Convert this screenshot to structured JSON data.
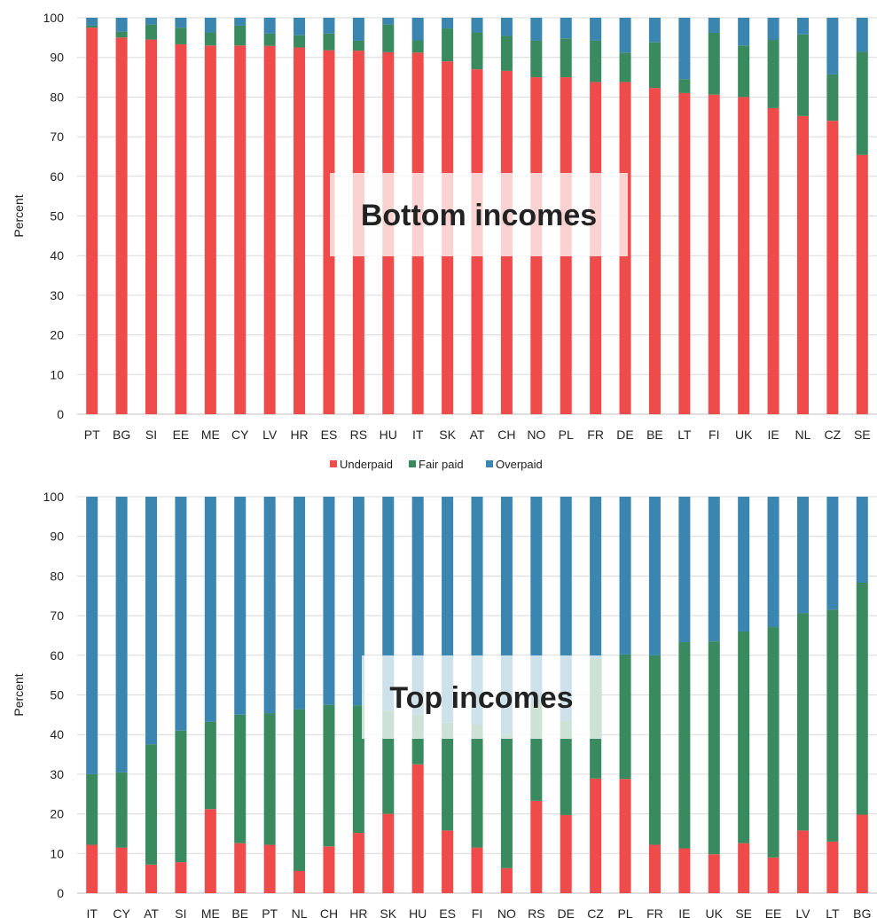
{
  "legend": [
    {
      "name": "Underpaid",
      "color": "#ef4b4b"
    },
    {
      "name": "Fair paid",
      "color": "#3a8a60"
    },
    {
      "name": "Overpaid",
      "color": "#3a86b0"
    }
  ],
  "chart_data": [
    {
      "type": "bar",
      "stacked": true,
      "overlay_label": "Bottom incomes",
      "ylabel": "Percent",
      "ylim": [
        0,
        100
      ],
      "yticks": [
        0,
        10,
        20,
        30,
        40,
        50,
        60,
        70,
        80,
        90,
        100
      ],
      "grid": true,
      "categories": [
        "PT",
        "BG",
        "SI",
        "EE",
        "ME",
        "CY",
        "LV",
        "HR",
        "ES",
        "RS",
        "HU",
        "IT",
        "SK",
        "AT",
        "CH",
        "NO",
        "PL",
        "FR",
        "DE",
        "BE",
        "LT",
        "FI",
        "UK",
        "IE",
        "NL",
        "CZ",
        "SE"
      ],
      "series": [
        {
          "name": "Underpaid",
          "values": [
            97.5,
            95,
            94.5,
            93.3,
            93,
            93,
            92.9,
            92.5,
            91.8,
            91.7,
            91.3,
            91.2,
            89,
            87,
            86.6,
            85,
            85,
            83.8,
            83.8,
            82.3,
            81,
            80.6,
            80,
            77.2,
            75.2,
            74,
            65.4
          ]
        },
        {
          "name": "Fair paid",
          "values": [
            0.5,
            1.5,
            3.8,
            4.2,
            3.3,
            5,
            3.1,
            3.1,
            4.2,
            2.5,
            7,
            3.1,
            8.3,
            9.3,
            8.8,
            9.2,
            9.8,
            10.4,
            7.4,
            11.5,
            3.5,
            15.6,
            13,
            17.2,
            20.6,
            11.7,
            26
          ]
        },
        {
          "name": "Overpaid",
          "values": [
            2,
            3.5,
            1.7,
            2.5,
            3.7,
            2,
            4,
            4.4,
            4,
            5.8,
            1.7,
            5.7,
            2.7,
            3.7,
            4.6,
            5.8,
            5.2,
            5.8,
            8.8,
            6.2,
            15.5,
            3.8,
            7,
            5.6,
            4.2,
            14.3,
            8.6
          ]
        }
      ]
    },
    {
      "type": "bar",
      "stacked": true,
      "overlay_label": "Top incomes",
      "ylabel": "Percent",
      "ylim": [
        0,
        100
      ],
      "yticks": [
        0,
        10,
        20,
        30,
        40,
        50,
        60,
        70,
        80,
        90,
        100
      ],
      "grid": true,
      "categories": [
        "IT",
        "CY",
        "AT",
        "SI",
        "ME",
        "BE",
        "PT",
        "NL",
        "CH",
        "HR",
        "SK",
        "HU",
        "ES",
        "FI",
        "NO",
        "RS",
        "DE",
        "CZ",
        "PL",
        "FR",
        "IE",
        "UK",
        "SE",
        "EE",
        "LV",
        "LT",
        "BG"
      ],
      "series": [
        {
          "name": "Underpaid",
          "values": [
            12.2,
            11.5,
            7.2,
            7.8,
            21.2,
            12.6,
            12.2,
            5.6,
            11.8,
            15.2,
            20,
            32.5,
            15.8,
            11.5,
            6.3,
            23.3,
            19.7,
            28.9,
            28.8,
            12.2,
            11.3,
            9.8,
            12.6,
            9,
            15.8,
            13,
            19.8
          ]
        },
        {
          "name": "Fair paid",
          "values": [
            17.8,
            19,
            30.3,
            33.2,
            22,
            32.4,
            33.2,
            40.8,
            35.7,
            32.2,
            26,
            12.5,
            27.2,
            31,
            33.7,
            24.7,
            23.8,
            30.3,
            31.4,
            47.8,
            52,
            53.7,
            53.4,
            58.1,
            54.8,
            58.5,
            58.5
          ]
        },
        {
          "name": "Overpaid",
          "values": [
            70,
            69.5,
            62.5,
            59,
            56.8,
            55,
            54.6,
            53.6,
            52.5,
            52.6,
            54,
            55,
            57,
            57.5,
            60,
            52,
            56.5,
            40.8,
            39.8,
            40,
            36.7,
            36.5,
            34,
            32.9,
            29.4,
            28.5,
            21.7
          ]
        }
      ]
    }
  ]
}
